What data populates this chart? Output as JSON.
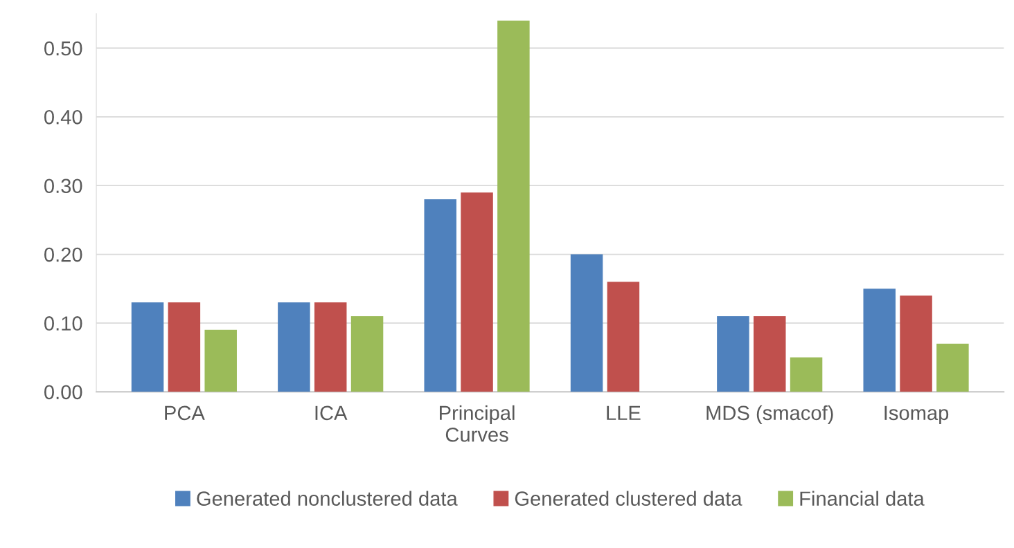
{
  "chart_data": {
    "type": "bar",
    "categories": [
      "PCA",
      "ICA",
      "Principal\nCurves",
      "LLE",
      "MDS (smacof)",
      "Isomap"
    ],
    "series": [
      {
        "name": "Generated nonclustered data",
        "color": "#4f81bd",
        "values": [
          0.13,
          0.13,
          0.28,
          0.2,
          0.11,
          0.15
        ]
      },
      {
        "name": "Generated clustered data",
        "color": "#c0504d",
        "values": [
          0.13,
          0.13,
          0.29,
          0.16,
          0.11,
          0.14
        ]
      },
      {
        "name": "Financial data",
        "color": "#9bbb59",
        "values": [
          0.09,
          0.11,
          0.54,
          null,
          0.05,
          0.07
        ]
      }
    ],
    "ylim": [
      0,
      0.55
    ],
    "yticks": [
      {
        "value": 0,
        "label": "0.00"
      },
      {
        "value": 0.1,
        "label": "0.10"
      },
      {
        "value": 0.2,
        "label": "0.20"
      },
      {
        "value": 0.3,
        "label": "0.30"
      },
      {
        "value": 0.4,
        "label": "0.40"
      },
      {
        "value": 0.5,
        "label": "0.50"
      }
    ],
    "grid": "y",
    "legend": "bottom"
  }
}
